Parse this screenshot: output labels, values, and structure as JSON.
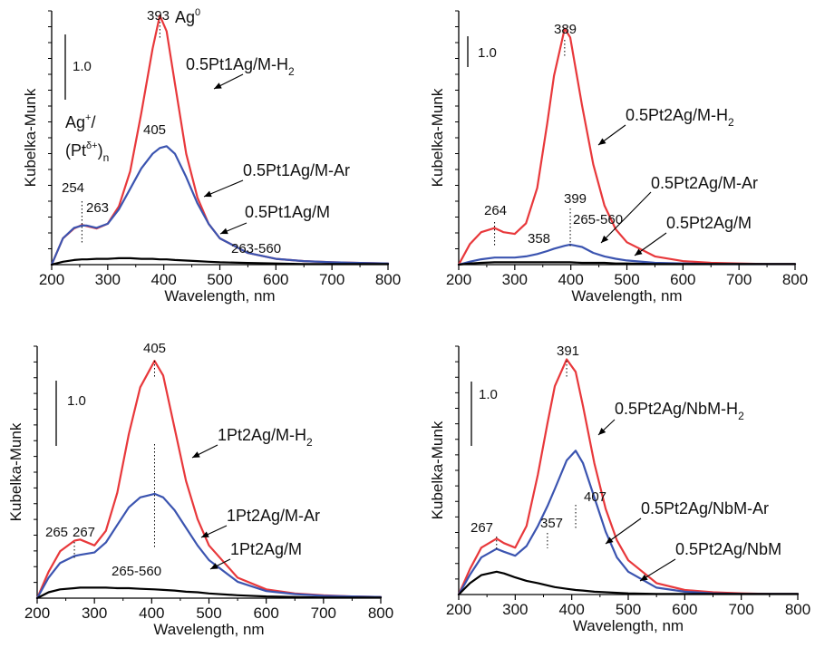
{
  "colors": {
    "red": "#e8383b",
    "blue": "#3b54b0",
    "black": "#000000"
  },
  "chart_data": [
    {
      "type": "line",
      "xlabel": "Wavelength, nm",
      "ylabel": "Kubelka-Munk",
      "xlim": [
        200,
        800
      ],
      "ylim": [
        0,
        4.35
      ],
      "xticks": [
        "200",
        "300",
        "400",
        "500",
        "600",
        "700",
        "800"
      ],
      "scale_bar": "1.0",
      "x": [
        200,
        220,
        240,
        254,
        263,
        280,
        300,
        320,
        340,
        360,
        380,
        393,
        405,
        420,
        440,
        460,
        480,
        500,
        550,
        600,
        650,
        700,
        750,
        800
      ],
      "series": [
        {
          "name": "0.5Pt1Ag/M-H2",
          "color": "red",
          "values": [
            0,
            0.45,
            0.62,
            0.68,
            0.66,
            0.62,
            0.7,
            1.0,
            1.6,
            2.6,
            3.7,
            4.27,
            4.0,
            3.1,
            1.9,
            1.15,
            0.7,
            0.45,
            0.2,
            0.1,
            0.06,
            0.04,
            0.03,
            0.02
          ]
        },
        {
          "name": "0.5Pt1Ag/M-Ar",
          "color": "blue",
          "values": [
            0,
            0.45,
            0.63,
            0.67,
            0.67,
            0.63,
            0.7,
            0.95,
            1.3,
            1.65,
            1.9,
            2.0,
            2.03,
            1.9,
            1.5,
            1.05,
            0.7,
            0.45,
            0.2,
            0.1,
            0.06,
            0.04,
            0.03,
            0.02
          ]
        },
        {
          "name": "0.5Pt1Ag/M",
          "color": "black",
          "values": [
            0,
            0.05,
            0.08,
            0.09,
            0.09,
            0.1,
            0.1,
            0.11,
            0.11,
            0.1,
            0.1,
            0.09,
            0.09,
            0.08,
            0.07,
            0.06,
            0.05,
            0.04,
            0.03,
            0.02,
            0.01,
            0.01,
            0.01,
            0.01
          ]
        }
      ],
      "peak_labels": [
        {
          "x": 393,
          "text": "393"
        },
        {
          "x": 405,
          "text": "405"
        },
        {
          "x": 254,
          "text": "254"
        },
        {
          "x": 263,
          "text": "263"
        },
        {
          "x": 330,
          "text": "263-560"
        }
      ],
      "annotations": [
        "Ag",
        "0",
        "Ag",
        "+",
        "/",
        "(Pt",
        "δ+",
        ")",
        "n"
      ],
      "legend": [
        {
          "label": "0.5Pt1Ag/M-H",
          "sub": "2"
        },
        {
          "label": "0.5Pt1Ag/M-Ar",
          "sub": ""
        },
        {
          "label": "0.5Pt1Ag/M",
          "sub": ""
        }
      ]
    },
    {
      "type": "line",
      "xlabel": "Wavelength, nm",
      "ylabel": "Kubelka-Munk",
      "xlim": [
        200,
        800
      ],
      "ylim": [
        0,
        4.3
      ],
      "xticks": [
        "200",
        "300",
        "400",
        "500",
        "600",
        "700",
        "800"
      ],
      "scale_bar": "1.0",
      "x": [
        200,
        220,
        240,
        264,
        280,
        300,
        320,
        340,
        358,
        370,
        389,
        399,
        420,
        440,
        460,
        480,
        500,
        550,
        600,
        650,
        700,
        750,
        800
      ],
      "series": [
        {
          "name": "0.5Pt2Ag/M-H2",
          "color": "red",
          "values": [
            0,
            0.35,
            0.55,
            0.62,
            0.55,
            0.52,
            0.7,
            1.3,
            2.4,
            3.2,
            4.0,
            3.85,
            2.7,
            1.7,
            1.0,
            0.6,
            0.38,
            0.14,
            0.06,
            0.03,
            0.02,
            0.01,
            0.01
          ]
        },
        {
          "name": "0.5Pt2Ag/M-Ar",
          "color": "blue",
          "values": [
            0,
            0.05,
            0.09,
            0.12,
            0.12,
            0.12,
            0.14,
            0.18,
            0.23,
            0.27,
            0.32,
            0.34,
            0.3,
            0.2,
            0.14,
            0.1,
            0.07,
            0.03,
            0.02,
            0.01,
            0.01,
            0.01,
            0.01
          ]
        },
        {
          "name": "0.5Pt2Ag/M",
          "color": "black",
          "values": [
            0,
            0.02,
            0.03,
            0.04,
            0.04,
            0.04,
            0.04,
            0.04,
            0.04,
            0.04,
            0.04,
            0.04,
            0.03,
            0.03,
            0.03,
            0.02,
            0.02,
            0.01,
            0.01,
            0.01,
            0.01,
            0.01,
            0.01
          ]
        }
      ],
      "peak_labels": [
        {
          "x": 389,
          "text": "389"
        },
        {
          "x": 264,
          "text": "264"
        },
        {
          "x": 358,
          "text": "358"
        },
        {
          "x": 399,
          "text": "399"
        },
        {
          "x": 412,
          "text": "265-560"
        }
      ],
      "legend": [
        {
          "label": "0.5Pt2Ag/M-H",
          "sub": "2"
        },
        {
          "label": "0.5Pt2Ag/M-Ar",
          "sub": ""
        },
        {
          "label": "0.5Pt2Ag/M",
          "sub": ""
        }
      ]
    },
    {
      "type": "line",
      "xlabel": "Wavelength, nm",
      "ylabel": "Kubelka-Munk",
      "xlim": [
        200,
        800
      ],
      "ylim": [
        0,
        4.3
      ],
      "xticks": [
        "200",
        "300",
        "400",
        "500",
        "600",
        "700",
        "800"
      ],
      "scale_bar": "1.0",
      "x": [
        200,
        220,
        240,
        265,
        275,
        300,
        320,
        340,
        360,
        380,
        405,
        420,
        440,
        460,
        480,
        500,
        550,
        600,
        650,
        700,
        750,
        800
      ],
      "series": [
        {
          "name": "1Pt2Ag/M-H2",
          "color": "red",
          "values": [
            0,
            0.45,
            0.8,
            0.98,
            1.0,
            0.9,
            1.15,
            1.8,
            2.8,
            3.6,
            4.05,
            3.8,
            2.9,
            2.0,
            1.35,
            0.9,
            0.35,
            0.15,
            0.08,
            0.05,
            0.03,
            0.02
          ]
        },
        {
          "name": "1Pt2Ag/M-Ar",
          "color": "blue",
          "values": [
            0,
            0.35,
            0.6,
            0.72,
            0.74,
            0.78,
            0.95,
            1.25,
            1.55,
            1.72,
            1.78,
            1.72,
            1.5,
            1.2,
            0.9,
            0.65,
            0.28,
            0.12,
            0.07,
            0.04,
            0.03,
            0.02
          ]
        },
        {
          "name": "1Pt2Ag/M",
          "color": "black",
          "values": [
            0,
            0.1,
            0.15,
            0.17,
            0.18,
            0.18,
            0.18,
            0.17,
            0.17,
            0.16,
            0.15,
            0.14,
            0.13,
            0.11,
            0.1,
            0.08,
            0.05,
            0.03,
            0.02,
            0.01,
            0.01,
            0.01
          ]
        }
      ],
      "peak_labels": [
        {
          "x": 405,
          "text": "405"
        },
        {
          "x": 255,
          "text": "265"
        },
        {
          "x": 272,
          "text": "267"
        },
        {
          "x": 400,
          "text": "265-560"
        }
      ],
      "legend": [
        {
          "label": "1Pt2Ag/M-H",
          "sub": "2"
        },
        {
          "label": "1Pt2Ag/M-Ar",
          "sub": ""
        },
        {
          "label": "1Pt2Ag/M",
          "sub": ""
        }
      ]
    },
    {
      "type": "line",
      "xlabel": "Wavelength, nm",
      "ylabel": "Kubelka-Munk",
      "xlim": [
        200,
        800
      ],
      "ylim": [
        0,
        4.35
      ],
      "xticks": [
        "200",
        "300",
        "400",
        "500",
        "600",
        "700",
        "800"
      ],
      "scale_bar": "1.0",
      "x": [
        200,
        220,
        240,
        267,
        280,
        300,
        320,
        340,
        357,
        370,
        391,
        407,
        420,
        440,
        460,
        480,
        500,
        550,
        600,
        650,
        700,
        750,
        800
      ],
      "series": [
        {
          "name": "0.5Pt2Ag/NbM-H2",
          "color": "red",
          "values": [
            0,
            0.45,
            0.82,
            0.98,
            0.9,
            0.82,
            1.2,
            2.1,
            3.0,
            3.65,
            4.12,
            3.9,
            3.3,
            2.3,
            1.5,
            0.95,
            0.6,
            0.2,
            0.08,
            0.04,
            0.02,
            0.01,
            0.01
          ]
        },
        {
          "name": "0.5Pt2Ag/NbM-Ar",
          "color": "blue",
          "values": [
            0,
            0.35,
            0.65,
            0.8,
            0.75,
            0.68,
            0.85,
            1.2,
            1.55,
            1.85,
            2.35,
            2.52,
            2.3,
            1.7,
            1.1,
            0.65,
            0.4,
            0.12,
            0.05,
            0.02,
            0.01,
            0.01,
            0.01
          ]
        },
        {
          "name": "0.5Pt2Ag/NbM",
          "color": "black",
          "values": [
            0,
            0.2,
            0.34,
            0.4,
            0.37,
            0.3,
            0.24,
            0.2,
            0.16,
            0.13,
            0.1,
            0.08,
            0.07,
            0.05,
            0.04,
            0.03,
            0.02,
            0.01,
            0.01,
            0.01,
            0.01,
            0.01,
            0.01
          ]
        }
      ],
      "peak_labels": [
        {
          "x": 391,
          "text": "391"
        },
        {
          "x": 407,
          "text": "407"
        },
        {
          "x": 357,
          "text": "357"
        },
        {
          "x": 267,
          "text": "267"
        }
      ],
      "legend": [
        {
          "label": "0.5Pt2Ag/NbM-H",
          "sub": "2"
        },
        {
          "label": "0.5Pt2Ag/NbM-Ar",
          "sub": ""
        },
        {
          "label": "0.5Pt2Ag/NbM",
          "sub": ""
        }
      ]
    }
  ]
}
